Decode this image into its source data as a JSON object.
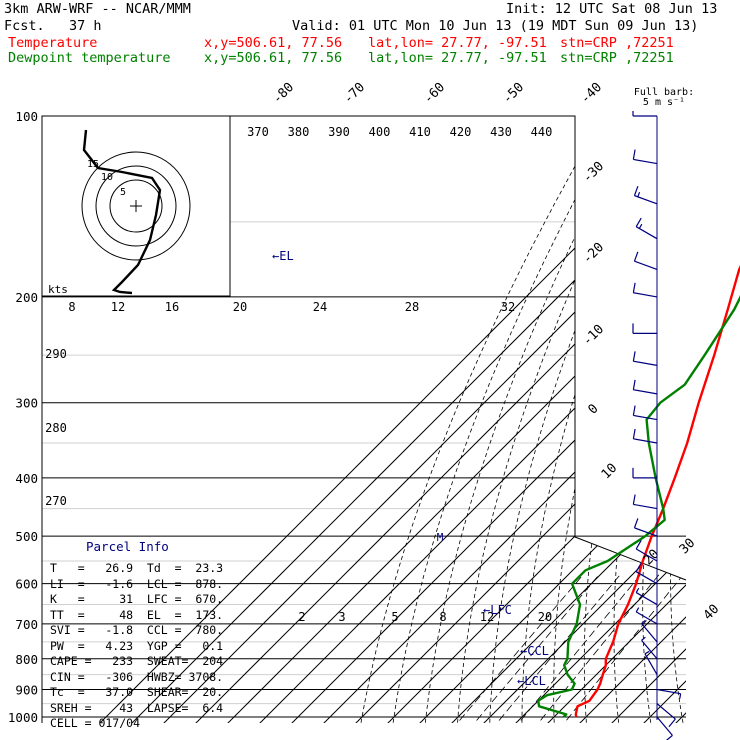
{
  "header": {
    "title": "3km ARW-WRF -- NCAR/MMM",
    "init": "Init: 12 UTC Sat 08 Jun 13",
    "fcst": "Fcst.   37 h",
    "valid": "Valid: 01 UTC Mon 10 Jun 13 (19 MDT Sun 09 Jun 13)",
    "temp_label": "Temperature",
    "dew_label": "Dewpoint temperature",
    "xy": "x,y=506.61, 77.56",
    "latlon": "lat,lon= 27.77, -97.51",
    "stn": "stn=CRP ,72251"
  },
  "colors": {
    "temperature": "#ff0000",
    "dewpoint": "#008000",
    "barbs": "#000080",
    "annot": "#000080"
  },
  "legend": {
    "full_barb": "Full barb:",
    "units": "5 m s⁻¹"
  },
  "chart_data": {
    "type": "line",
    "pressure_levels": [
      100,
      200,
      300,
      400,
      500,
      600,
      700,
      800,
      900,
      1000
    ],
    "isotherm_labels": [
      "-80",
      "-70",
      "-60",
      "-50",
      "-40",
      "-30",
      "-20",
      "-10",
      "0",
      "10",
      "20",
      "30",
      "40"
    ],
    "theta_labels": [
      "370",
      "380",
      "390",
      "400",
      "410",
      "420",
      "430",
      "440"
    ],
    "dry_adiabat_labels": [
      "290",
      "280",
      "270"
    ],
    "mixing_ratio_labels": [
      "2",
      "3",
      "5",
      "8",
      "12",
      "20"
    ],
    "hodograph": {
      "kts_label": "kts",
      "speed_labels": [
        "8",
        "12",
        "16",
        "20",
        "24",
        "28",
        "32"
      ],
      "ring_labels": [
        "5",
        "10",
        "15"
      ]
    },
    "parcel_labels": [
      "EL",
      "LFC",
      "CCL",
      "LCL"
    ],
    "series": [
      {
        "name": "Temperature",
        "color": "#ff0000",
        "points": [
          [
            1000,
            27
          ],
          [
            990,
            26
          ],
          [
            960,
            24
          ],
          [
            940,
            26
          ],
          [
            920,
            25.5
          ],
          [
            900,
            25
          ],
          [
            880,
            24
          ],
          [
            850,
            22
          ],
          [
            820,
            20
          ],
          [
            800,
            18
          ],
          [
            750,
            15
          ],
          [
            700,
            11
          ],
          [
            650,
            8
          ],
          [
            600,
            4
          ],
          [
            550,
            -1
          ],
          [
            500,
            -6
          ],
          [
            450,
            -11
          ],
          [
            400,
            -17
          ],
          [
            350,
            -24
          ],
          [
            300,
            -33
          ],
          [
            250,
            -43
          ],
          [
            210,
            -53
          ],
          [
            180,
            -62
          ],
          [
            160,
            -67
          ],
          [
            140,
            -63
          ],
          [
            120,
            -58
          ],
          [
            110,
            -56
          ],
          [
            100,
            -55
          ]
        ]
      },
      {
        "name": "Dewpoint temperature",
        "color": "#008000",
        "points": [
          [
            1000,
            23
          ],
          [
            990,
            23
          ],
          [
            960,
            12
          ],
          [
            940,
            10
          ],
          [
            920,
            11
          ],
          [
            900,
            17
          ],
          [
            880,
            16
          ],
          [
            850,
            11
          ],
          [
            820,
            7
          ],
          [
            800,
            6
          ],
          [
            750,
            1
          ],
          [
            700,
            -2
          ],
          [
            650,
            -7
          ],
          [
            600,
            -16
          ],
          [
            570,
            -16
          ],
          [
            550,
            -12
          ],
          [
            500,
            -8
          ],
          [
            470,
            -7
          ],
          [
            450,
            -11
          ],
          [
            400,
            -23
          ],
          [
            350,
            -36
          ],
          [
            320,
            -44
          ],
          [
            300,
            -45
          ],
          [
            280,
            -43
          ],
          [
            250,
            -46
          ],
          [
            210,
            -51
          ],
          [
            200,
            -53
          ],
          [
            180,
            -58
          ],
          [
            160,
            -63
          ],
          [
            140,
            -66
          ],
          [
            120,
            -63
          ],
          [
            110,
            -64
          ],
          [
            100,
            -65
          ]
        ]
      }
    ],
    "winds": [
      {
        "p": 100,
        "dir": 270,
        "spd": 5
      },
      {
        "p": 120,
        "dir": 280,
        "spd": 10
      },
      {
        "p": 140,
        "dir": 290,
        "spd": 15
      },
      {
        "p": 160,
        "dir": 300,
        "spd": 15
      },
      {
        "p": 180,
        "dir": 290,
        "spd": 10
      },
      {
        "p": 200,
        "dir": 280,
        "spd": 10
      },
      {
        "p": 230,
        "dir": 270,
        "spd": 10
      },
      {
        "p": 260,
        "dir": 280,
        "spd": 10
      },
      {
        "p": 290,
        "dir": 280,
        "spd": 10
      },
      {
        "p": 320,
        "dir": 280,
        "spd": 10
      },
      {
        "p": 350,
        "dir": 280,
        "spd": 10
      },
      {
        "p": 400,
        "dir": 270,
        "spd": 10
      },
      {
        "p": 450,
        "dir": 280,
        "spd": 10
      },
      {
        "p": 500,
        "dir": 290,
        "spd": 10
      },
      {
        "p": 550,
        "dir": 300,
        "spd": 10
      },
      {
        "p": 600,
        "dir": 300,
        "spd": 10
      },
      {
        "p": 650,
        "dir": 300,
        "spd": 5
      },
      {
        "p": 700,
        "dir": 300,
        "spd": 5
      },
      {
        "p": 750,
        "dir": 320,
        "spd": 5
      },
      {
        "p": 800,
        "dir": 320,
        "spd": 5
      },
      {
        "p": 850,
        "dir": 330,
        "spd": 5
      },
      {
        "p": 900,
        "dir": 100,
        "spd": 5
      },
      {
        "p": 950,
        "dir": 130,
        "spd": 10
      },
      {
        "p": 1000,
        "dir": 140,
        "spd": 10
      }
    ]
  },
  "parcel": {
    "title": "Parcel Info",
    "rows": [
      "T   =   26.9  Td  =  23.3",
      "LI  =   -1.6  LCL =  878.",
      "K   =     31  LFC =  670.",
      "TT  =     48  EL  =  173.",
      "SVI =   -1.8  CCL =  780.",
      "PW  =   4.23  YGP =   0.1",
      "CAPE =   233  SWEAT=  204",
      "CIN =   -306  HWBZ= 3708.",
      "Tc  =   37.0  SHEAR=  20.",
      "SREH =    43  LAPSE=  6.4",
      "CELL = 017/04"
    ]
  }
}
